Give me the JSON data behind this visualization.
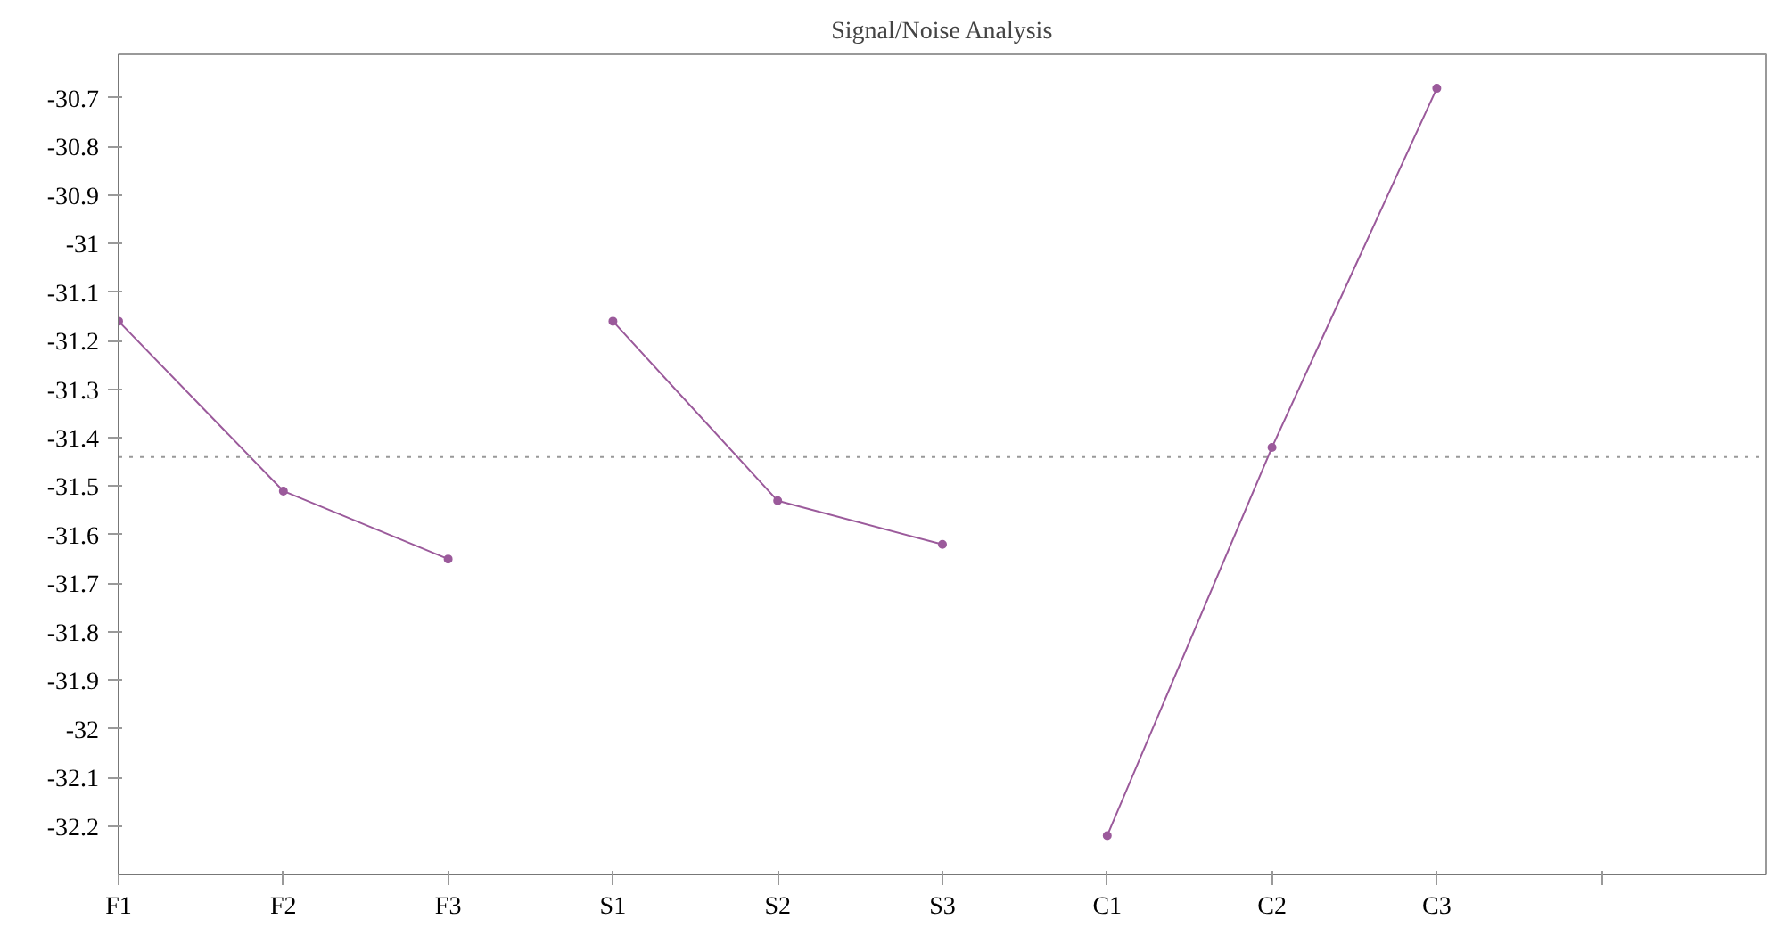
{
  "chart_data": {
    "type": "line",
    "title": "Signal/Noise Analysis",
    "categories": [
      "F1",
      "F2",
      "F3",
      "S1",
      "S2",
      "S3",
      "C1",
      "C2",
      "C3",
      null
    ],
    "series": [
      {
        "color": "#9b5a9b",
        "values": [
          -31.16,
          -31.51,
          -31.65,
          null,
          null,
          null,
          null,
          null,
          null,
          null
        ]
      },
      {
        "color": "#9b5a9b",
        "values": [
          null,
          null,
          null,
          -31.16,
          -31.53,
          -31.62,
          null,
          null,
          null,
          null
        ]
      },
      {
        "color": "#9b5a9b",
        "values": [
          null,
          null,
          null,
          null,
          null,
          null,
          -32.22,
          -31.42,
          -30.68,
          null
        ]
      }
    ],
    "ylim": [
      -32.3,
      -30.61
    ],
    "yticks": [
      -32.2,
      -32.1,
      -32,
      -31.9,
      -31.8,
      -31.7,
      -31.6,
      -31.5,
      -31.4,
      -31.3,
      -31.2,
      -31.1,
      -31,
      -30.9,
      -30.8,
      -30.7
    ],
    "ref_lines": [
      {
        "axis": "y",
        "value": -31.44,
        "color": "#999999",
        "line_style": "dotted"
      }
    ],
    "grid": false,
    "marker": "circle",
    "line_style": "solid"
  }
}
